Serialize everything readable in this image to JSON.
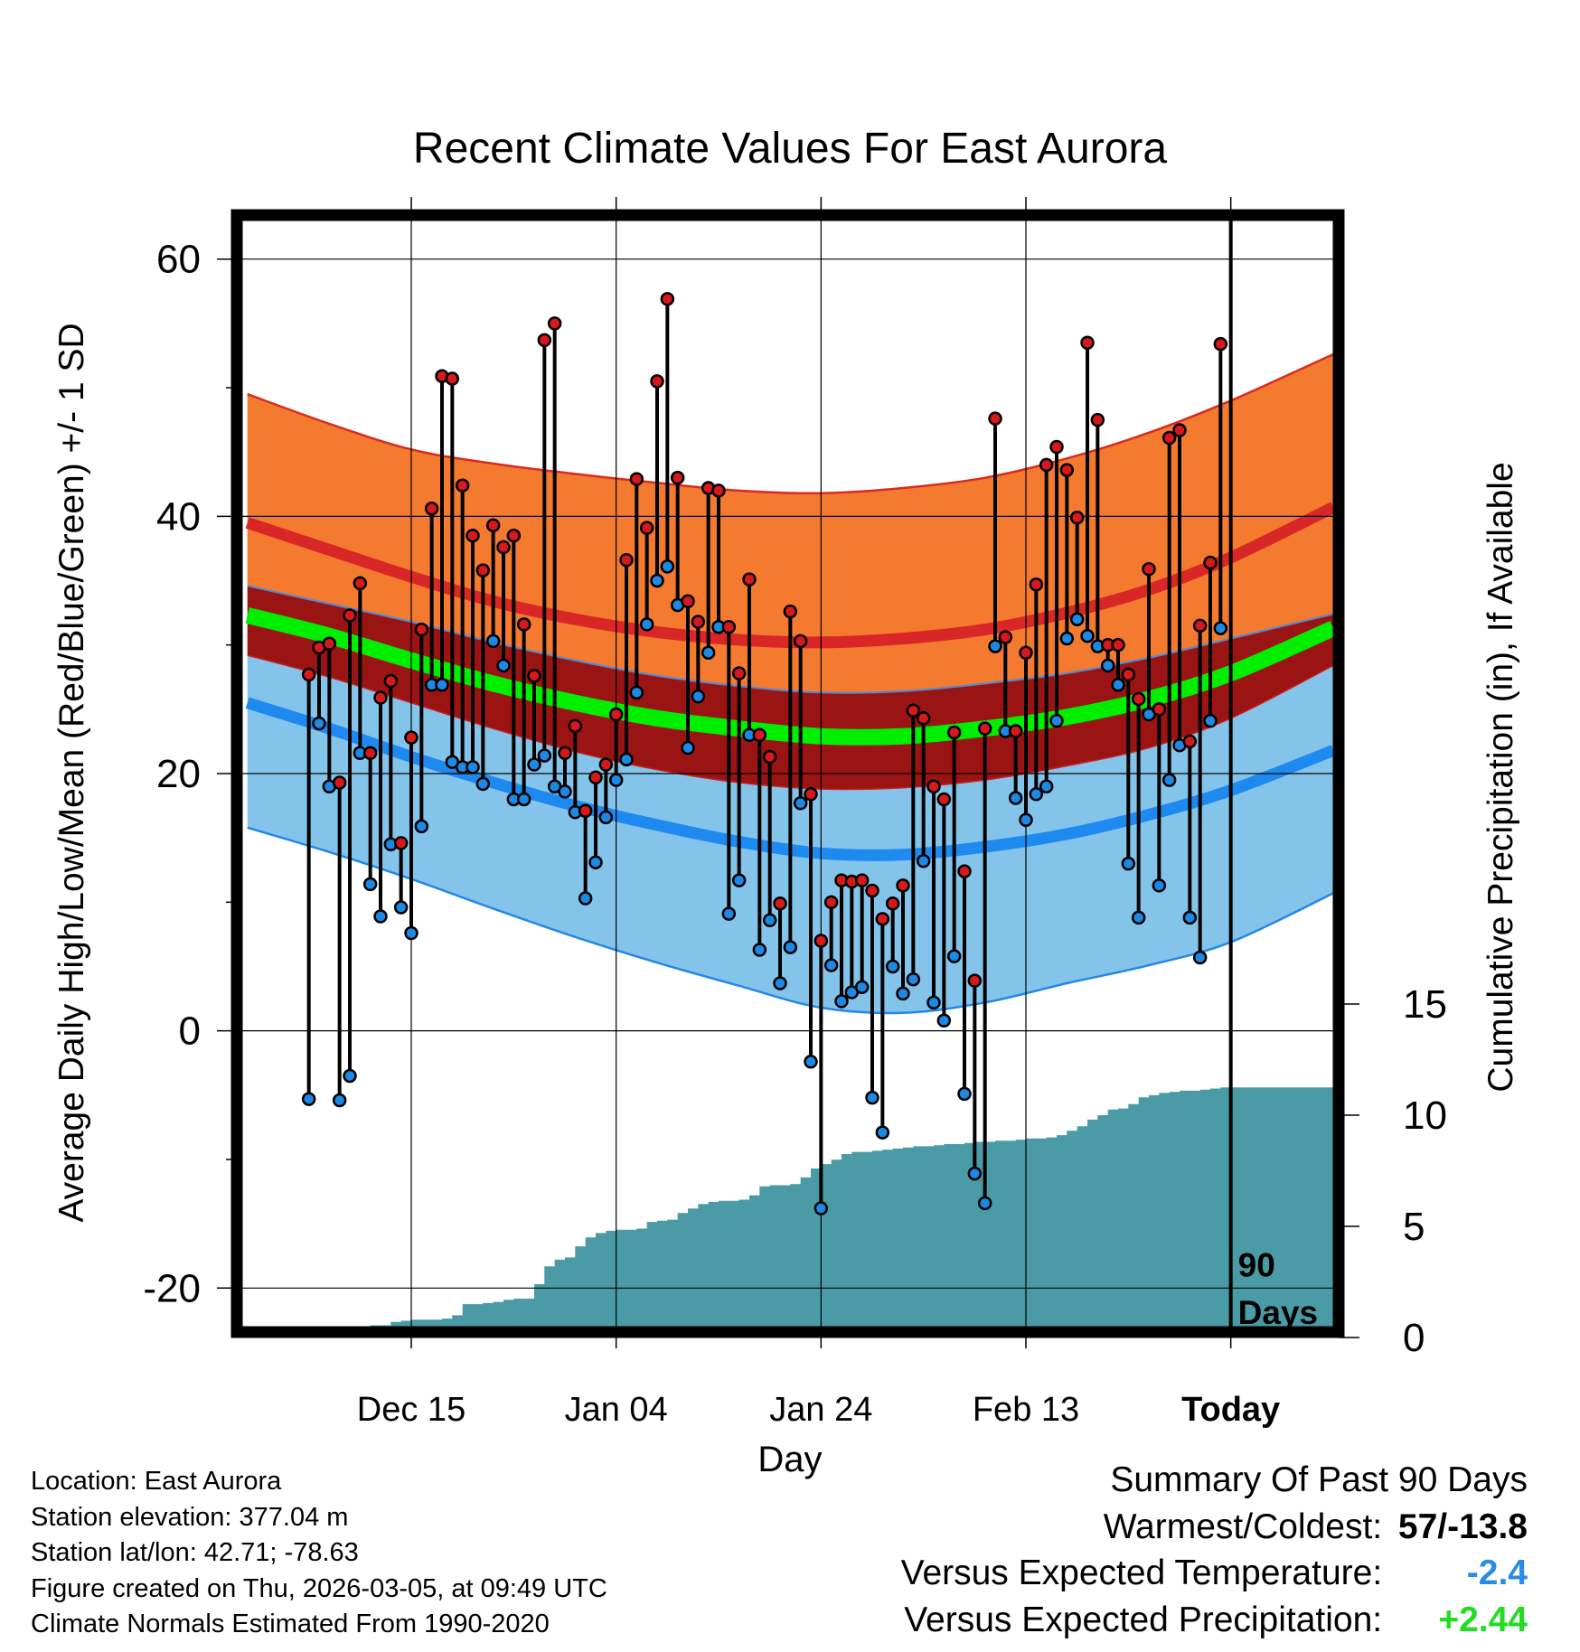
{
  "chart_data": {
    "type": "climate-band-with-dumbbells",
    "title": "Recent Climate Values For East Aurora",
    "xlabel": "Day",
    "ylabel_left": "Average Daily High/Low/Mean (Red/Blue/Green) +/- 1 SD",
    "ylabel_right": "Cumulative Precipitation (in), If Available",
    "x_domain_days": [
      -96.5,
      10
    ],
    "y_left_range": [
      -23,
      63
    ],
    "y_left_ticks": [
      -20,
      0,
      20,
      40,
      60
    ],
    "y_right_ticks": [
      0,
      5,
      10,
      15
    ],
    "x_ticks": [
      {
        "day": -80,
        "label": "Dec 15"
      },
      {
        "day": -60,
        "label": "Jan 04"
      },
      {
        "day": -40,
        "label": "Jan 24"
      },
      {
        "day": -20,
        "label": "Feb 13"
      },
      {
        "day": 0,
        "label": "Today"
      }
    ],
    "today_marker_label_line1": "90",
    "today_marker_label_line2": "Days",
    "normals": {
      "days": [
        -96,
        -88,
        -80,
        -72,
        -64,
        -56,
        -48,
        -40,
        -32,
        -24,
        -16,
        -8,
        0,
        10
      ],
      "high_mean": [
        39.5,
        37.4,
        35.3,
        33.4,
        32.0,
        31.0,
        30.4,
        30.2,
        30.5,
        31.2,
        32.5,
        34.3,
        36.8,
        40.7
      ],
      "high_upper": [
        49.5,
        47.2,
        45.2,
        44.1,
        43.3,
        42.6,
        42.0,
        41.8,
        42.2,
        43.0,
        44.5,
        46.5,
        49.0,
        52.6
      ],
      "high_lower": [
        34.6,
        33.2,
        31.8,
        30.2,
        28.8,
        27.6,
        26.8,
        26.3,
        26.4,
        27.0,
        27.8,
        29.0,
        30.5,
        32.4
      ],
      "mean_mean": [
        32.3,
        30.7,
        28.8,
        27.0,
        25.5,
        24.3,
        23.5,
        22.9,
        22.9,
        23.5,
        24.4,
        25.8,
        27.8,
        31.3
      ],
      "low_upper": [
        29.2,
        27.5,
        25.5,
        23.5,
        21.7,
        20.3,
        19.3,
        18.8,
        18.9,
        19.5,
        20.6,
        22.0,
        24.3,
        28.4
      ],
      "low_mean": [
        25.5,
        23.5,
        21.3,
        19.3,
        17.5,
        16.0,
        14.7,
        13.8,
        13.7,
        14.3,
        15.3,
        16.8,
        18.7,
        21.8
      ],
      "low_lower": [
        15.8,
        13.9,
        11.8,
        9.5,
        7.3,
        5.3,
        3.5,
        1.8,
        1.4,
        2.2,
        3.7,
        5.1,
        6.9,
        10.7
      ]
    },
    "series": [
      {
        "name": "High",
        "color": "#d7191c",
        "values": [
          27.7,
          29.8,
          30.1,
          19.3,
          32.3,
          34.8,
          21.6,
          25.9,
          27.2,
          14.6,
          22.8,
          31.2,
          40.6,
          50.9,
          50.7,
          42.4,
          38.5,
          35.8,
          39.3,
          37.6,
          38.5,
          31.6,
          27.6,
          53.7,
          55.0,
          21.6,
          23.7,
          17.1,
          19.7,
          20.7,
          24.6,
          36.6,
          42.9,
          39.1,
          50.5,
          56.9,
          43.0,
          33.4,
          31.8,
          42.2,
          42.0,
          31.4,
          27.8,
          35.1,
          23.0,
          21.3,
          9.9,
          32.6,
          30.3,
          18.4,
          7.0,
          10.0,
          11.7,
          11.6,
          11.7,
          10.9,
          8.7,
          9.9,
          11.3,
          24.9,
          24.3,
          19.0,
          18.0,
          23.2,
          12.4,
          3.9,
          23.5,
          47.6,
          30.6,
          23.3,
          29.4,
          34.7,
          44.0,
          45.4,
          43.6,
          39.9,
          53.5,
          47.5,
          30.0,
          30.0,
          27.7,
          25.8,
          35.9,
          25.0,
          46.1,
          46.7,
          22.5,
          31.5,
          36.4,
          53.4
        ]
      },
      {
        "name": "Low",
        "color": "#1e88e5",
        "values": [
          -5.3,
          23.9,
          19.0,
          -5.4,
          -3.5,
          21.6,
          11.4,
          8.9,
          14.5,
          9.6,
          7.6,
          15.9,
          26.9,
          26.9,
          20.9,
          20.5,
          20.5,
          19.2,
          30.3,
          28.4,
          18.0,
          18.0,
          20.7,
          21.4,
          19.0,
          18.6,
          17.0,
          10.3,
          13.1,
          16.6,
          19.5,
          21.1,
          26.3,
          31.6,
          35.0,
          36.1,
          33.1,
          22.0,
          26.0,
          29.4,
          31.4,
          9.1,
          11.7,
          23.0,
          6.3,
          8.6,
          3.7,
          6.5,
          17.7,
          -2.4,
          -13.8,
          5.1,
          2.3,
          3.0,
          3.4,
          -5.2,
          -7.9,
          5.0,
          2.9,
          4.0,
          13.2,
          2.2,
          0.8,
          5.8,
          -4.9,
          -11.1,
          -13.4,
          29.9,
          23.3,
          18.1,
          16.4,
          18.4,
          19.0,
          24.1,
          30.5,
          32.0,
          30.7,
          29.9,
          28.4,
          26.9,
          13.0,
          8.8,
          24.6,
          11.3,
          19.5,
          22.2,
          8.8,
          5.7,
          24.1,
          31.3
        ]
      },
      {
        "name": "Cumulative Precipitation",
        "color": "#4a9ba5",
        "days": [
          -85,
          -84,
          -82,
          -81,
          -80,
          -79,
          -78,
          -77,
          -76,
          -75,
          -74,
          -73,
          -72,
          -71,
          -70,
          -69,
          -68,
          -67,
          -66,
          -65,
          -64,
          -63,
          -62,
          -61,
          -60,
          -59,
          -58,
          -57,
          -56,
          -55,
          -54,
          -53,
          -52,
          -51,
          -50,
          -49,
          -48,
          -47,
          -46,
          -45,
          -44,
          -43,
          -42,
          -41,
          -40,
          -39,
          -38,
          -37,
          -36,
          -35,
          -34,
          -33,
          -32,
          -31,
          -30,
          -29,
          -28,
          -27,
          -26,
          -25,
          -24,
          -23,
          -22,
          -21,
          -20,
          -19,
          -18,
          -17,
          -16,
          -15,
          -14,
          -13,
          -12,
          -11,
          -10,
          -9,
          -8,
          -7,
          -6,
          -5,
          -4,
          -3,
          -2,
          -1,
          0,
          10
        ],
        "values": [
          0.5,
          0.55,
          0.7,
          0.75,
          0.8,
          0.8,
          0.8,
          0.85,
          1.0,
          1.5,
          1.5,
          1.55,
          1.6,
          1.7,
          1.75,
          1.75,
          2.4,
          3.2,
          3.5,
          3.6,
          4.1,
          4.5,
          4.7,
          4.8,
          4.85,
          4.85,
          4.9,
          5.2,
          5.25,
          5.3,
          5.6,
          5.8,
          6.0,
          6.1,
          6.15,
          6.15,
          6.2,
          6.4,
          6.8,
          6.85,
          6.85,
          6.9,
          7.2,
          7.6,
          7.8,
          8.0,
          8.25,
          8.35,
          8.35,
          8.4,
          8.45,
          8.5,
          8.55,
          8.6,
          8.6,
          8.65,
          8.7,
          8.7,
          8.75,
          8.8,
          8.8,
          8.85,
          8.85,
          8.9,
          8.95,
          8.95,
          9.0,
          9.1,
          9.3,
          9.5,
          9.8,
          10.0,
          10.25,
          10.3,
          10.5,
          10.8,
          10.9,
          11.0,
          11.05,
          11.1,
          11.1,
          11.15,
          11.2,
          11.25,
          11.25,
          11.25
        ]
      }
    ]
  },
  "location": "Location: East Aurora",
  "elevation": "Station elevation: 377.04 m",
  "latlon": "Station lat/lon: 42.71; -78.63",
  "created": "Figure created on Thu, 2026-03-05, at 09:49 UTC",
  "normals_period": "Climate Normals Estimated From 1990-2020",
  "summary": {
    "heading": "Summary Of Past 90 Days",
    "warmest_label": "Warmest/Coldest:",
    "warmest_value": "57/-13.8",
    "temp_label": "Versus Expected Temperature:",
    "temp_value": "-2.4",
    "temp_color": "#2a8be8",
    "precip_label": "Versus Expected Precipitation:",
    "precip_value": "+2.44",
    "precip_color": "#22dd22"
  }
}
